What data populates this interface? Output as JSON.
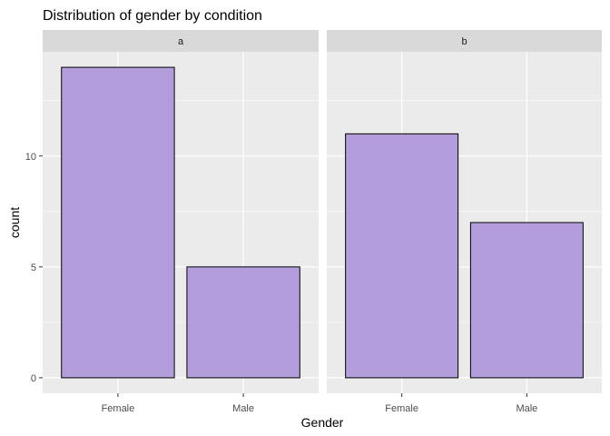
{
  "chart_data": {
    "type": "bar",
    "title": "Distribution of gender by condition",
    "xlabel": "Gender",
    "ylabel": "count",
    "categories": [
      "Female",
      "Male"
    ],
    "ylim": [
      -0.7,
      14.7
    ],
    "yticks": [
      0,
      5,
      10
    ],
    "yticks_minor": [
      2.5,
      7.5,
      12.5
    ],
    "grid": true,
    "bar_fill": "#b39ddb",
    "bar_stroke": "#000000",
    "panel_background": "#ebebeb",
    "strip_background": "#d9d9d9",
    "facets": [
      {
        "label": "a",
        "values": [
          14,
          5
        ]
      },
      {
        "label": "b",
        "values": [
          11,
          7
        ]
      }
    ]
  }
}
